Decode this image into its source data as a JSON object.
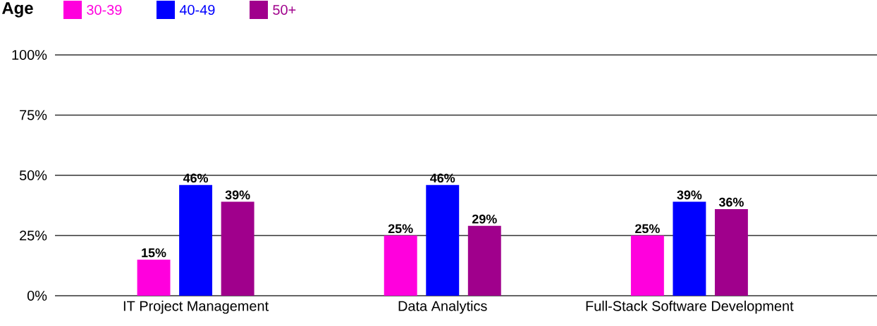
{
  "chart_data": {
    "type": "bar",
    "legend_title": "Age",
    "categories": [
      "IT Project Management",
      "Data Analytics",
      "Full-Stack Software Development"
    ],
    "series": [
      {
        "name": "30-39",
        "color": "#ff00dd",
        "values": [
          15,
          25,
          25
        ],
        "value_labels": [
          "15%",
          "25%",
          "25%"
        ]
      },
      {
        "name": "40-49",
        "color": "#0000ff",
        "values": [
          46,
          46,
          39
        ],
        "value_labels": [
          "46%",
          "46%",
          "39%"
        ]
      },
      {
        "name": "50+",
        "color": "#a0008c",
        "values": [
          39,
          29,
          36
        ],
        "value_labels": [
          "39%",
          "29%",
          "36%"
        ]
      }
    ],
    "ylim": [
      0,
      100
    ],
    "yticks": [
      {
        "value": 0,
        "label": "0%"
      },
      {
        "value": 25,
        "label": "25%"
      },
      {
        "value": 50,
        "label": "50%"
      },
      {
        "value": 75,
        "label": "75%"
      },
      {
        "value": 100,
        "label": "100%"
      }
    ],
    "grid": "y",
    "legend": "top left"
  }
}
